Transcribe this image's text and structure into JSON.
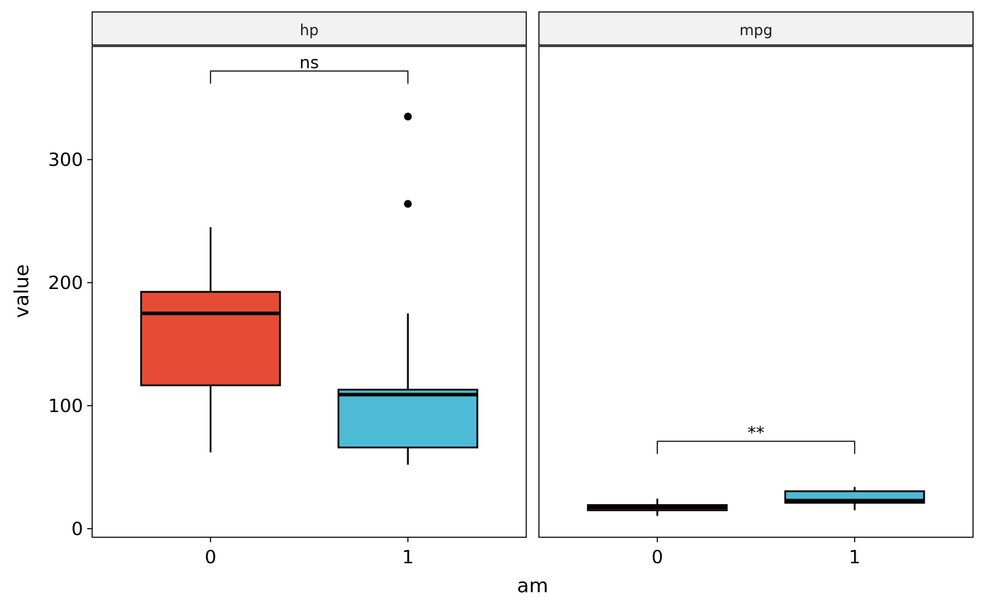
{
  "chart_data": {
    "type": "boxplot",
    "title": "",
    "xlabel": "am",
    "ylabel": "value",
    "ylim": [
      -7,
      392
    ],
    "y_ticks": [
      0,
      100,
      200,
      300
    ],
    "categories": [
      "0",
      "1"
    ],
    "colors": {
      "0": "#E64B35",
      "1": "#4DBBD5"
    },
    "grid": false,
    "panels": [
      {
        "name": "hp",
        "boxes": [
          {
            "group": "0",
            "whisker_low": 62,
            "q1": 116.5,
            "median": 175,
            "q3": 192.5,
            "whisker_high": 245,
            "outliers": []
          },
          {
            "group": "1",
            "whisker_low": 52,
            "q1": 66,
            "median": 109,
            "q3": 113,
            "whisker_high": 175,
            "outliers": [
              264,
              335
            ]
          }
        ],
        "comparison": {
          "label": "ns",
          "y": 372
        }
      },
      {
        "name": "mpg",
        "boxes": [
          {
            "group": "0",
            "whisker_low": 10.4,
            "q1": 14.95,
            "median": 17.3,
            "q3": 19.2,
            "whisker_high": 24.4,
            "outliers": []
          },
          {
            "group": "1",
            "whisker_low": 15,
            "q1": 21,
            "median": 22.8,
            "q3": 30.4,
            "whisker_high": 33.9,
            "outliers": []
          }
        ],
        "comparison": {
          "label": "**",
          "y": 71
        }
      }
    ]
  }
}
